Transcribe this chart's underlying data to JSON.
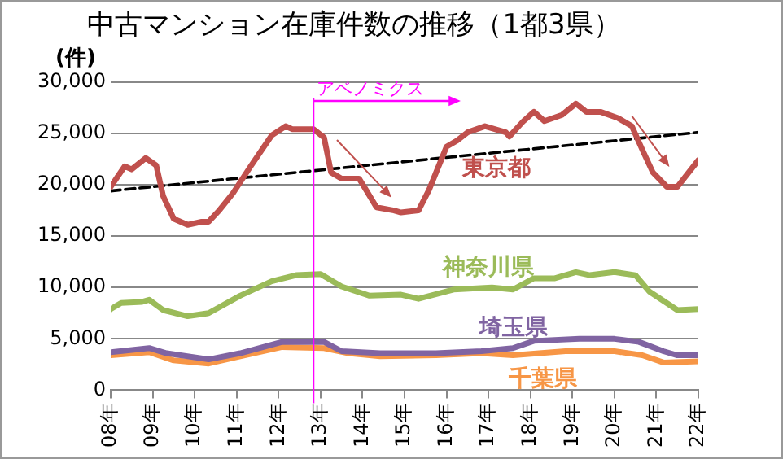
{
  "chart_data": {
    "type": "line",
    "title": "中古マンション在庫件数の推移（1都3県）",
    "ylabel": "(件)",
    "xlim": [
      "2008-01",
      "2022-01"
    ],
    "xticks": [
      {
        "value": "2008-01",
        "label": "08年"
      },
      {
        "value": "2009-01",
        "label": "09年"
      },
      {
        "value": "2010-01",
        "label": "10年"
      },
      {
        "value": "2011-01",
        "label": "11年"
      },
      {
        "value": "2012-01",
        "label": "12年"
      },
      {
        "value": "2013-01",
        "label": "13年"
      },
      {
        "value": "2014-01",
        "label": "14年"
      },
      {
        "value": "2015-01",
        "label": "15年"
      },
      {
        "value": "2016-01",
        "label": "16年"
      },
      {
        "value": "2017-01",
        "label": "17年"
      },
      {
        "value": "2018-01",
        "label": "18年"
      },
      {
        "value": "2019-01",
        "label": "19年"
      },
      {
        "value": "2020-01",
        "label": "20年"
      },
      {
        "value": "2021-01",
        "label": "21年"
      },
      {
        "value": "2022-01",
        "label": "22年"
      }
    ],
    "ylim": [
      0,
      30000
    ],
    "yticks": [
      {
        "value": 0,
        "label": "0"
      },
      {
        "value": 5000,
        "label": "5,000"
      },
      {
        "value": 10000,
        "label": "10,000"
      },
      {
        "value": 15000,
        "label": "15,000"
      },
      {
        "value": 20000,
        "label": "20,000"
      },
      {
        "value": 25000,
        "label": "25,000"
      },
      {
        "value": 30000,
        "label": "30,000"
      }
    ],
    "grid": "y",
    "legend": false,
    "marker": "none",
    "ref_lines": [
      {
        "axis": "x",
        "value": "2012-11",
        "label": "アベノミクス",
        "color": "#ff00ff"
      }
    ],
    "series": [
      {
        "name": "東京都",
        "color": "#c0504d",
        "x": [
          "2008-01",
          "2008-05",
          "2008-07",
          "2008-11",
          "2009-02",
          "2009-04",
          "2009-07",
          "2009-11",
          "2010-03",
          "2010-05",
          "2010-08",
          "2010-12",
          "2011-05",
          "2011-11",
          "2012-03",
          "2012-05",
          "2012-11",
          "2013-02",
          "2013-04",
          "2013-07",
          "2013-12",
          "2014-02",
          "2014-05",
          "2014-10",
          "2014-12",
          "2015-05",
          "2015-08",
          "2016-01",
          "2016-04",
          "2016-07",
          "2016-12",
          "2017-06",
          "2017-07",
          "2017-11",
          "2018-02",
          "2018-05",
          "2018-10",
          "2019-02",
          "2019-05",
          "2019-09",
          "2020-02",
          "2020-06",
          "2020-09",
          "2020-12",
          "2021-04",
          "2021-07",
          "2022-01"
        ],
        "values": [
          19800,
          21800,
          21500,
          22600,
          21900,
          18900,
          16700,
          16100,
          16400,
          16400,
          17500,
          19200,
          21800,
          24800,
          25700,
          25400,
          25400,
          24600,
          21200,
          20600,
          20600,
          19500,
          17800,
          17500,
          17300,
          17500,
          19500,
          23700,
          24300,
          25100,
          25700,
          25100,
          24700,
          26200,
          27100,
          26200,
          26800,
          27900,
          27100,
          27100,
          26500,
          25700,
          23400,
          21200,
          19800,
          19800,
          22400
        ]
      },
      {
        "name": "神奈川県",
        "color": "#9bbb59",
        "x": [
          "2008-01",
          "2008-04",
          "2008-10",
          "2008-12",
          "2009-04",
          "2009-11",
          "2010-05",
          "2011-02",
          "2011-11",
          "2012-06",
          "2013-01",
          "2013-07",
          "2014-03",
          "2014-12",
          "2015-05",
          "2016-03",
          "2017-02",
          "2017-08",
          "2018-02",
          "2018-08",
          "2019-02",
          "2019-06",
          "2020-01",
          "2020-07",
          "2020-11",
          "2021-07",
          "2022-01"
        ],
        "values": [
          7900,
          8500,
          8600,
          8800,
          7800,
          7200,
          7500,
          9200,
          10600,
          11200,
          11300,
          10100,
          9200,
          9300,
          8900,
          9800,
          10000,
          9800,
          10900,
          10900,
          11500,
          11200,
          11500,
          11200,
          9600,
          7800,
          7900
        ]
      },
      {
        "name": "埼玉県",
        "color": "#8064a2",
        "x": [
          "2008-01",
          "2008-12",
          "2009-05",
          "2010-05",
          "2011-02",
          "2012-02",
          "2013-02",
          "2013-07",
          "2014-06",
          "2015-10",
          "2016-11",
          "2017-08",
          "2018-02",
          "2019-03",
          "2020-01",
          "2020-08",
          "2021-03",
          "2021-07",
          "2022-01"
        ],
        "values": [
          3700,
          4100,
          3600,
          3000,
          3600,
          4700,
          4700,
          3800,
          3600,
          3600,
          3800,
          4100,
          4800,
          5000,
          5000,
          4700,
          3800,
          3400,
          3400
        ]
      },
      {
        "name": "千葉県",
        "color": "#f79646",
        "x": [
          "2008-01",
          "2008-12",
          "2009-07",
          "2010-05",
          "2011-02",
          "2012-02",
          "2013-02",
          "2013-09",
          "2014-06",
          "2015-10",
          "2016-11",
          "2017-08",
          "2018-11",
          "2020-01",
          "2020-09",
          "2021-03",
          "2022-01"
        ],
        "values": [
          3400,
          3700,
          2900,
          2600,
          3300,
          4200,
          4100,
          3600,
          3300,
          3400,
          3600,
          3400,
          3800,
          3800,
          3400,
          2700,
          2800
        ]
      },
      {
        "type": "line",
        "color": "#000000",
        "line_style": "dashed",
        "x": [
          "2008-01",
          "2022-01"
        ],
        "values": [
          19400,
          25100
        ]
      }
    ]
  }
}
